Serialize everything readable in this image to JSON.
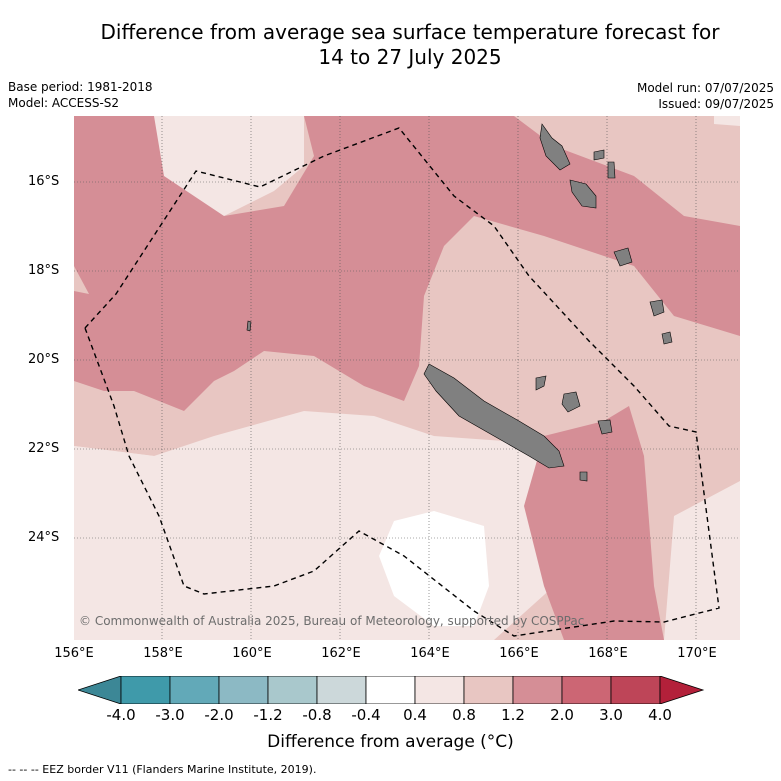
{
  "title_line1": "Difference from average sea surface temperature forecast for",
  "title_line2": "14 to 27 July 2025",
  "base_period": "Base period: 1981-2018",
  "model": "Model: ACCESS-S2",
  "model_run": "Model run: 07/07/2025",
  "issued": "Issued: 09/07/2025",
  "copyright": "© Commonwealth of Australia 2025, Bureau of Meteorology, supported by COSPPac",
  "lat_labels": [
    "16°S",
    "18°S",
    "20°S",
    "22°S",
    "24°S"
  ],
  "lon_labels": [
    "156°E",
    "158°E",
    "160°E",
    "162°E",
    "164°E",
    "166°E",
    "168°E",
    "170°E"
  ],
  "colorbar": {
    "ticks": [
      "-4.0",
      "-3.0",
      "-2.0",
      "-1.2",
      "-0.8",
      "-0.4",
      "0.4",
      "0.8",
      "1.2",
      "2.0",
      "3.0",
      "4.0"
    ],
    "colors": [
      "#3f9aaa",
      "#62a9b8",
      "#8cb9c4",
      "#a9c8cc",
      "#ccd8da",
      "#ffffff",
      "#f4e6e4",
      "#e8c6c2",
      "#d58e96",
      "#cc6674",
      "#be4558"
    ],
    "under_color": "#3c8796",
    "over_color": "#b3203a",
    "label": "Difference from average (°C)"
  },
  "footer": "--  --  -- EEZ border V11 (Flanders Marine Institute, 2019)."
}
